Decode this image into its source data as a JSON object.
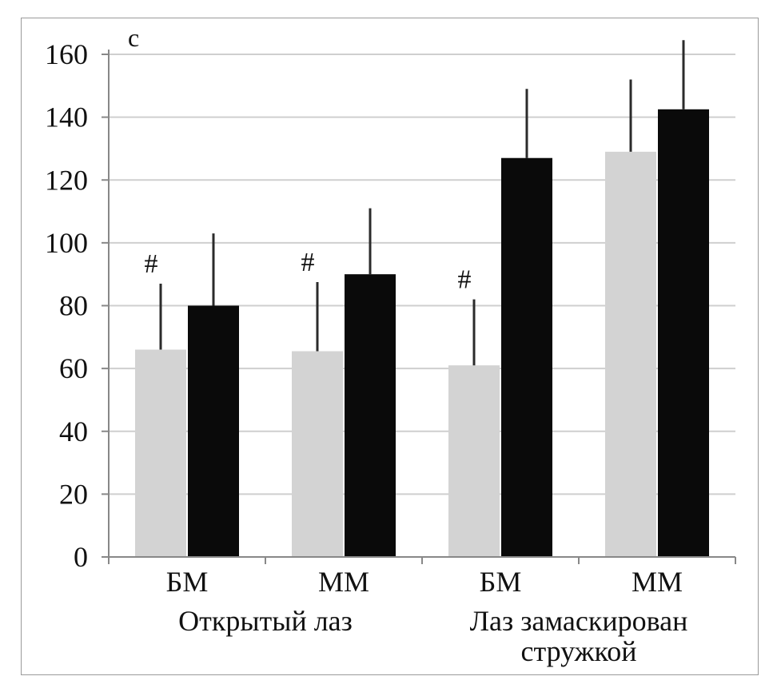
{
  "chart_data": {
    "type": "bar",
    "unit_label": "с",
    "categories": [
      "БМ",
      "ММ",
      "БМ",
      "ММ"
    ],
    "groups": [
      {
        "label_lines": [
          "Открытый лаз"
        ],
        "categories": [
          0,
          1
        ]
      },
      {
        "label_lines": [
          "Лаз замаскирован",
          "стружкой"
        ],
        "categories": [
          2,
          3
        ]
      }
    ],
    "series": [
      {
        "color": "#d3d3d3",
        "values": [
          66,
          65.5,
          61,
          129
        ],
        "errors": [
          21,
          22,
          21,
          23
        ],
        "markers": [
          "#",
          "#",
          "#",
          ""
        ]
      },
      {
        "color": "#0a0a0a",
        "values": [
          80,
          90,
          127,
          142.5
        ],
        "errors": [
          23,
          21,
          22,
          22
        ],
        "markers": [
          "",
          "",
          "",
          ""
        ]
      }
    ],
    "ylim": [
      0,
      160
    ],
    "yticks": [
      "0",
      "20",
      "40",
      "60",
      "80",
      "100",
      "120",
      "140",
      "160"
    ],
    "grid": true
  }
}
